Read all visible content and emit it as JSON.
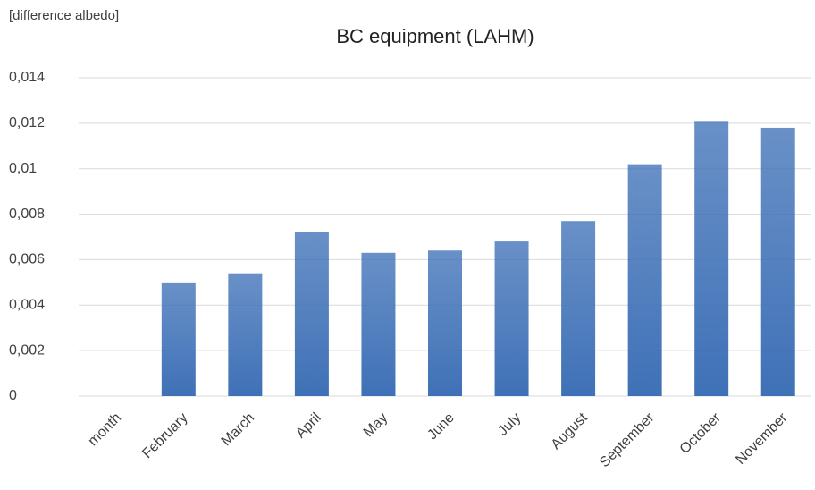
{
  "chart_data": {
    "type": "bar",
    "title": "BC equipment (LAHM)",
    "y_label": "[difference albedo]",
    "categories": [
      "month",
      "February",
      "March",
      "April",
      "May",
      "June",
      "July",
      "August",
      "September",
      "October",
      "November"
    ],
    "values": [
      null,
      0.005,
      0.0054,
      0.0072,
      0.0063,
      0.0064,
      0.0068,
      0.0077,
      0.0102,
      0.0121,
      0.0118
    ],
    "color": "#3f71b7",
    "ylim": [
      0,
      0.014
    ],
    "yticks": [
      0,
      {
        "value": 0.002,
        "label": "0,002"
      },
      {
        "value": 0.004,
        "label": "0,004"
      },
      {
        "value": 0.006,
        "label": "0,006"
      },
      {
        "value": 0.008,
        "label": "0,008"
      },
      {
        "value": 0.01,
        "label": "0,01"
      },
      {
        "value": 0.012,
        "label": "0,012"
      },
      {
        "value": 0.014,
        "label": "0,014"
      }
    ],
    "grid": true
  }
}
